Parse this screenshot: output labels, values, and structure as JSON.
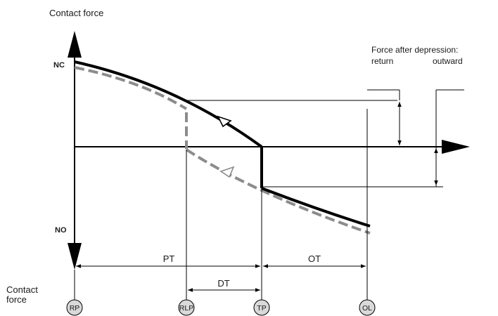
{
  "labels": {
    "y_axis_title": "Contact force",
    "nc": "NC",
    "no": "NO",
    "force_after_title": "Force after depression:",
    "return_label": "return",
    "outward_label": "outward",
    "bottom_left_line1": "Contact",
    "bottom_left_line2": "force"
  },
  "intervals": {
    "pt": "PT",
    "ot": "OT",
    "dt": "DT"
  },
  "positions": {
    "rp": "RP",
    "rlp": "RLP",
    "tp": "TP",
    "ol": "OL"
  },
  "colors": {
    "line": "#000000",
    "dashed": "#8c8c8c",
    "circle_fill": "#d9d9d9"
  }
}
